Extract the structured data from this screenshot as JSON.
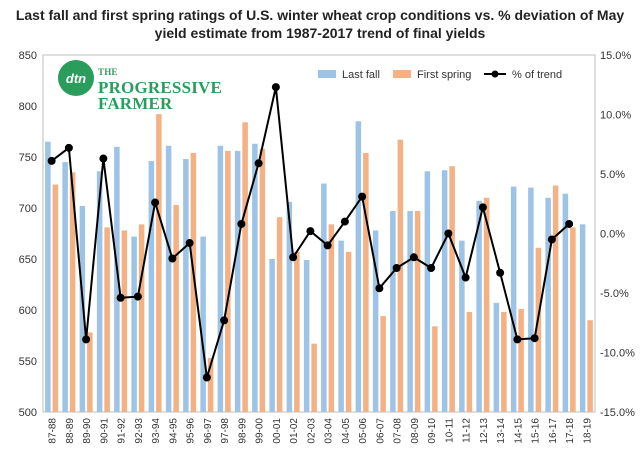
{
  "title": "Last fall and first spring ratings of U.S. winter wheat crop conditions vs. % deviation of May yield estimate from 1987-2017 trend of final yields",
  "logo": {
    "icon_text": "dtn",
    "line1": "PROGRESSIVE",
    "line1_prefix": "THE",
    "line2": "FARMER"
  },
  "colors": {
    "last_fall": "#9dc3e6",
    "first_spring": "#f4b183",
    "pct_trend": "#000000"
  },
  "chart_data": {
    "type": "bar",
    "categories": [
      "87-88",
      "88-89",
      "89-90",
      "90-91",
      "91-92",
      "92-93",
      "93-94",
      "94-95",
      "95-96",
      "96-97",
      "97-98",
      "98-99",
      "99-00",
      "00-01",
      "01-02",
      "02-03",
      "03-04",
      "04-05",
      "05-06",
      "06-07",
      "07-08",
      "08-09",
      "09-10",
      "10-11",
      "11-12",
      "12-13",
      "13-14",
      "14-15",
      "15-16",
      "16-17",
      "17-18",
      "18-19"
    ],
    "series": [
      {
        "name": "Last fall",
        "axis": "left",
        "kind": "bar",
        "values": [
          765,
          745,
          702,
          736,
          760,
          672,
          746,
          761,
          748,
          672,
          761,
          756,
          763,
          650,
          706,
          649,
          724,
          668,
          785,
          678,
          697,
          697,
          736,
          737,
          668,
          707,
          607,
          721,
          720,
          710,
          714,
          684
        ]
      },
      {
        "name": "First spring",
        "axis": "left",
        "kind": "bar",
        "values": [
          723,
          735,
          578,
          681,
          678,
          684,
          792,
          703,
          754,
          553,
          756,
          784,
          758,
          691,
          657,
          567,
          684,
          657,
          754,
          594,
          767,
          697,
          584,
          741,
          598,
          710,
          598,
          601,
          661,
          722,
          681,
          590
        ]
      },
      {
        "name": "% of trend",
        "axis": "right",
        "kind": "line",
        "values": [
          6.1,
          7.2,
          -8.9,
          6.3,
          -5.4,
          -5.3,
          2.6,
          -2.1,
          -0.8,
          -12.1,
          -7.3,
          0.8,
          5.9,
          12.3,
          -2.0,
          0.2,
          -1.0,
          1.0,
          3.1,
          -4.6,
          -2.9,
          -2.0,
          -2.9,
          0.0,
          -3.7,
          2.2,
          -3.3,
          -8.9,
          -8.8,
          -0.5,
          0.8,
          null
        ]
      }
    ],
    "y_left": {
      "min": 500,
      "max": 850,
      "step": 50,
      "ticks": [
        "500",
        "550",
        "600",
        "650",
        "700",
        "750",
        "800",
        "850"
      ]
    },
    "y_right": {
      "min": -15,
      "max": 15,
      "step": 5,
      "ticks": [
        "-15.0%",
        "-10.0%",
        "-5.0%",
        "0.0%",
        "5.0%",
        "10.0%",
        "15.0%"
      ]
    },
    "grid": false,
    "legend_position": "top-right"
  }
}
